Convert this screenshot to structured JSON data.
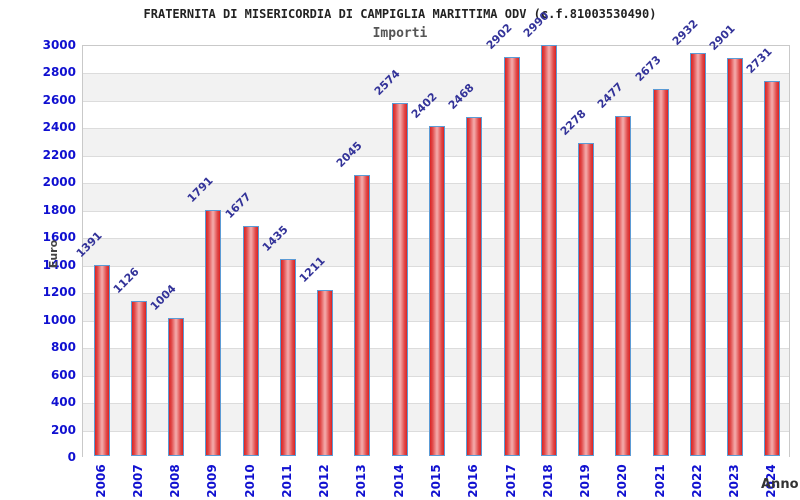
{
  "chart_data": {
    "type": "bar",
    "title": "FRATERNITA DI MISERICORDIA DI CAMPIGLIA MARITTIMA ODV (c.f.81003530490)",
    "subtitle": "Importi",
    "categories": [
      "2006",
      "2007",
      "2008",
      "2009",
      "2010",
      "2011",
      "2012",
      "2013",
      "2014",
      "2015",
      "2016",
      "2017",
      "2018",
      "2019",
      "2020",
      "2021",
      "2022",
      "2023",
      "2024"
    ],
    "values": [
      1391,
      1126,
      1004,
      1791,
      1677,
      1435,
      1211,
      2045,
      2574,
      2402,
      2468,
      2902,
      2990,
      2278,
      2477,
      2673,
      2932,
      2901,
      2731
    ],
    "xlabel": "Anno",
    "ylabel": "Euro",
    "ylim": [
      0,
      3000
    ],
    "ytick_step": 200,
    "grid": true,
    "legend": false,
    "band_alternating": true,
    "colors": {
      "bar_edge": "#5b9bd5",
      "bar_dark": "#db2424",
      "bar_mid": "#e04848",
      "bar_light": "#f3a6a6",
      "tick_label": "#1010d0",
      "value_label": "#333399",
      "band": "#f2f2f2",
      "gridline": "#dcdcdc",
      "title": "#222222",
      "subtitle": "#555555",
      "axis_title": "#3d3d3d"
    }
  }
}
